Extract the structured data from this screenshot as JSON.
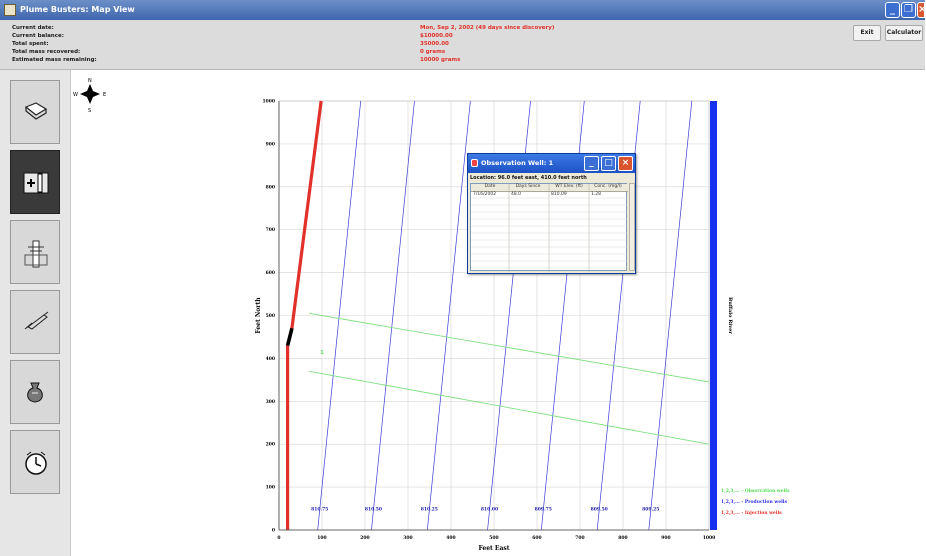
{
  "window": {
    "title": "Plume Busters: Map View"
  },
  "info": [
    {
      "label": "Current date:",
      "value": "Mon, Sep 2, 2002 (49 days since discovery)"
    },
    {
      "label": "Current balance:",
      "value": "$10000.00"
    },
    {
      "label": "Total spent:",
      "value": "35000.00"
    },
    {
      "label": "Total mass recovered:",
      "value": "0 grams"
    },
    {
      "label": "Estimated mass remaining:",
      "value": "10000 grams"
    }
  ],
  "buttons": {
    "exit": "Exit",
    "calculator": "Calculator"
  },
  "compass": {
    "n": "N",
    "s": "S",
    "e": "E",
    "w": "W"
  },
  "tools": [
    {
      "name": "book-icon",
      "selected": false
    },
    {
      "name": "well-install-icon",
      "selected": true
    },
    {
      "name": "pump-well-icon",
      "selected": false
    },
    {
      "name": "syringe-sample-icon",
      "selected": false
    },
    {
      "name": "money-bag-icon",
      "selected": false
    },
    {
      "name": "clock-icon",
      "selected": false
    }
  ],
  "chart_data": {
    "type": "line",
    "xlabel": "Feet East",
    "ylabel": "Feet North",
    "xlim": [
      0,
      1000
    ],
    "ylim": [
      0,
      1000
    ],
    "xticks": [
      "0",
      "100",
      "200",
      "300",
      "400",
      "500",
      "600",
      "700",
      "800",
      "900",
      "1000"
    ],
    "yticks": [
      "0",
      "100",
      "200",
      "300",
      "400",
      "500",
      "600",
      "700",
      "800",
      "900",
      "1000"
    ],
    "grid": true,
    "river_label": "Buffalo River",
    "contours": [
      {
        "label": "810.75",
        "x_bottom": 90,
        "x_top": 190
      },
      {
        "label": "810.50",
        "x_bottom": 215,
        "x_top": 315
      },
      {
        "label": "810.25",
        "x_bottom": 345,
        "x_top": 445
      },
      {
        "label": "810.00",
        "x_bottom": 485,
        "x_top": 585
      },
      {
        "label": "809.75",
        "x_bottom": 610,
        "x_top": 710
      },
      {
        "label": "809.50",
        "x_bottom": 740,
        "x_top": 840
      },
      {
        "label": "809.25",
        "x_bottom": 860,
        "x_top": 960
      }
    ],
    "plume_lines": [
      {
        "x": [
          70,
          1000
        ],
        "y": [
          505,
          345
        ]
      },
      {
        "x": [
          70,
          1000
        ],
        "y": [
          370,
          200
        ]
      }
    ],
    "injection_line": {
      "x": [
        20,
        20,
        30,
        98
      ],
      "y": [
        0,
        430,
        470,
        1000
      ]
    },
    "observation_wells": [
      {
        "label": "1",
        "x": 96,
        "y": 410
      }
    ],
    "legend": [
      {
        "label": "1,2,3,... - Observation wells",
        "color": "#4fdc4f"
      },
      {
        "label": "1,2,3,... - Production wells",
        "color": "#2a2af0"
      },
      {
        "label": "1,2,3,... - Injection wells",
        "color": "#e2302a"
      }
    ],
    "legend_position": "bottom-right"
  },
  "popup": {
    "title": "Observation Well: 1",
    "location": "Location: 96.0 feet east, 410.0 feet north",
    "columns": [
      "Date",
      "Days Since",
      "WT Elev. (ft)",
      "Conc. (mg/l)"
    ],
    "rows": [
      [
        "7/16/2002",
        "48.0",
        "810.09",
        "1.28"
      ]
    ]
  }
}
